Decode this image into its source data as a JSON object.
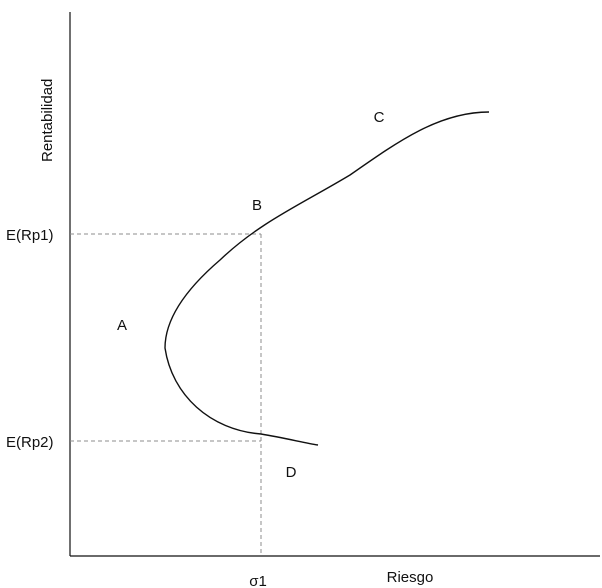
{
  "axes": {
    "y_label": "Rentabilidad",
    "x_label": "Riesgo"
  },
  "ticks": {
    "y_upper": "E(Rp1)",
    "y_lower": "E(Rp2)",
    "x_sigma": "σ1"
  },
  "points": {
    "a": "A",
    "b": "B",
    "c": "C",
    "d": "D"
  }
}
